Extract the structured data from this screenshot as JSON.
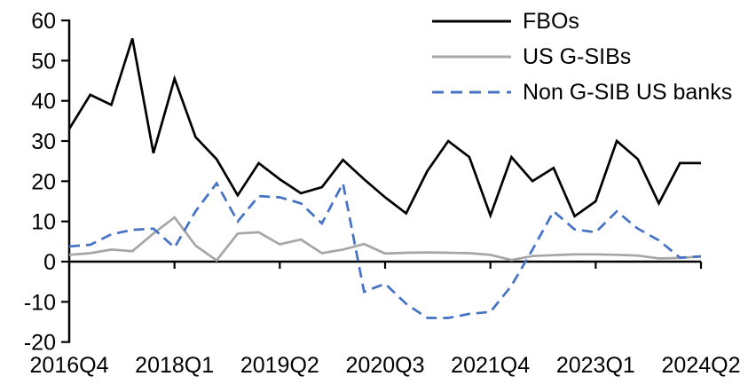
{
  "chart_data": {
    "type": "line",
    "title": "",
    "xlabel": "",
    "ylabel": "",
    "x_categories": [
      "2016Q4",
      "2017Q1",
      "2017Q2",
      "2017Q3",
      "2017Q4",
      "2018Q1",
      "2018Q2",
      "2018Q3",
      "2018Q4",
      "2019Q1",
      "2019Q2",
      "2019Q3",
      "2019Q4",
      "2020Q1",
      "2020Q2",
      "2020Q3",
      "2020Q4",
      "2021Q1",
      "2021Q2",
      "2021Q3",
      "2021Q4",
      "2022Q1",
      "2022Q2",
      "2022Q3",
      "2022Q4",
      "2023Q1",
      "2023Q2",
      "2023Q3",
      "2023Q4",
      "2024Q1",
      "2024Q2"
    ],
    "x_tick_labels": [
      "2016Q4",
      "2018Q1",
      "2019Q2",
      "2020Q3",
      "2021Q4",
      "2023Q1",
      "2024Q2"
    ],
    "x_tick_indices": [
      0,
      5,
      10,
      15,
      20,
      25,
      30
    ],
    "y_ticks": [
      60,
      50,
      40,
      30,
      20,
      10,
      0,
      -10,
      -20
    ],
    "ylim": [
      -20,
      60
    ],
    "grid": false,
    "legend_position": "top-right",
    "series": [
      {
        "name": "FBOs",
        "color": "#000000",
        "dash": "solid",
        "values": [
          33,
          41.5,
          39,
          55.5,
          27,
          45.5,
          31,
          25.5,
          16.5,
          24.5,
          20.5,
          17,
          18.5,
          25.3,
          20.5,
          16,
          12,
          22.5,
          30,
          26,
          11.5,
          26,
          20,
          23.3,
          11.3,
          15,
          30,
          25.5,
          14.5,
          24.5,
          24.5
        ]
      },
      {
        "name": "US G-SIBs",
        "color": "#a6a6a6",
        "dash": "solid",
        "values": [
          1.7,
          2.1,
          3,
          2.6,
          7,
          11,
          4,
          0.3,
          7,
          7.3,
          4.3,
          5.5,
          2.1,
          3,
          4.4,
          2,
          2.2,
          2.3,
          2.2,
          2.1,
          1.7,
          0.4,
          1.4,
          1.6,
          1.8,
          1.8,
          1.7,
          1.5,
          0.8,
          0.9,
          1.3
        ]
      },
      {
        "name": "Non G-SIB US banks",
        "color": "#4472c4",
        "dash": "dashed",
        "values": [
          3.8,
          4.2,
          6.8,
          7.9,
          8.2,
          3.5,
          12.5,
          19.5,
          10,
          16.3,
          16,
          14.5,
          9.5,
          19.5,
          -7.5,
          -5.5,
          -10.5,
          -14,
          -14,
          -13,
          -12.5,
          -6,
          3,
          12.5,
          8,
          7.3,
          12.5,
          8.2,
          5.3,
          1,
          1.3
        ]
      }
    ]
  },
  "style": {
    "axis_color": "#000000",
    "text_color": "#000000",
    "background": "#ffffff"
  }
}
